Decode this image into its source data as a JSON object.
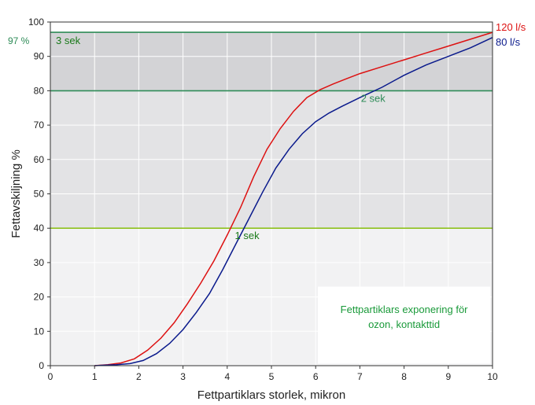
{
  "chart_data": {
    "type": "line",
    "title": "",
    "xlabel": "Fettpartiklars storlek, mikron",
    "ylabel": "Fettavskiljning %",
    "xlim": [
      0,
      10
    ],
    "ylim": [
      0,
      100
    ],
    "x_ticks": [
      "0",
      "1",
      "2",
      "3",
      "4",
      "5",
      "6",
      "7",
      "8",
      "9",
      "10"
    ],
    "y_ticks": [
      "0",
      "10",
      "20",
      "30",
      "40",
      "50",
      "60",
      "70",
      "80",
      "90",
      "100"
    ],
    "grid": true,
    "series": [
      {
        "name": "120 l/s",
        "color": "#dd1111",
        "points": [
          [
            1,
            0
          ],
          [
            1.3,
            0.3
          ],
          [
            1.6,
            0.8
          ],
          [
            1.9,
            2
          ],
          [
            2.2,
            4.5
          ],
          [
            2.5,
            8
          ],
          [
            2.8,
            12.5
          ],
          [
            3.1,
            18
          ],
          [
            3.4,
            24
          ],
          [
            3.7,
            30.5
          ],
          [
            4.0,
            38
          ],
          [
            4.3,
            46
          ],
          [
            4.6,
            55
          ],
          [
            4.9,
            63
          ],
          [
            5.2,
            69
          ],
          [
            5.5,
            74
          ],
          [
            5.8,
            78
          ],
          [
            6.1,
            80.3
          ],
          [
            6.4,
            82
          ],
          [
            6.7,
            83.5
          ],
          [
            7.0,
            85
          ],
          [
            7.5,
            87
          ],
          [
            8.0,
            89
          ],
          [
            8.5,
            91
          ],
          [
            9.0,
            93
          ],
          [
            9.5,
            95
          ],
          [
            10,
            97
          ]
        ]
      },
      {
        "name": "80 l/s",
        "color": "#0a1a8c",
        "points": [
          [
            1,
            0
          ],
          [
            1.5,
            0.3
          ],
          [
            1.8,
            0.6
          ],
          [
            2.1,
            1.5
          ],
          [
            2.4,
            3.5
          ],
          [
            2.7,
            6.5
          ],
          [
            3.0,
            10.5
          ],
          [
            3.3,
            15.5
          ],
          [
            3.6,
            21
          ],
          [
            3.9,
            28
          ],
          [
            4.2,
            35.5
          ],
          [
            4.5,
            43
          ],
          [
            4.8,
            50.5
          ],
          [
            5.1,
            57.5
          ],
          [
            5.4,
            63
          ],
          [
            5.7,
            67.5
          ],
          [
            6.0,
            71
          ],
          [
            6.3,
            73.5
          ],
          [
            6.6,
            75.5
          ],
          [
            7.0,
            78
          ],
          [
            7.5,
            81
          ],
          [
            8.0,
            84.5
          ],
          [
            8.5,
            87.5
          ],
          [
            9.0,
            90
          ],
          [
            9.5,
            92.5
          ],
          [
            10,
            95.5
          ]
        ]
      }
    ],
    "thresholds": [
      {
        "y": 97,
        "label": "3 sek",
        "left_label": "97 %",
        "color": "#2e8b57",
        "fill": "#d3d3d6"
      },
      {
        "y": 80,
        "label": "2 sek",
        "color": "#2e8b57",
        "fill": "#e3e3e5"
      },
      {
        "y": 40,
        "label": "1 sek",
        "color": "#8fc21f",
        "fill": "#f2f2f3"
      }
    ],
    "annotation": {
      "lines": [
        "Fettpartiklars exponering för",
        "ozon, kontakttid"
      ],
      "color": "#1a9a3a"
    }
  }
}
